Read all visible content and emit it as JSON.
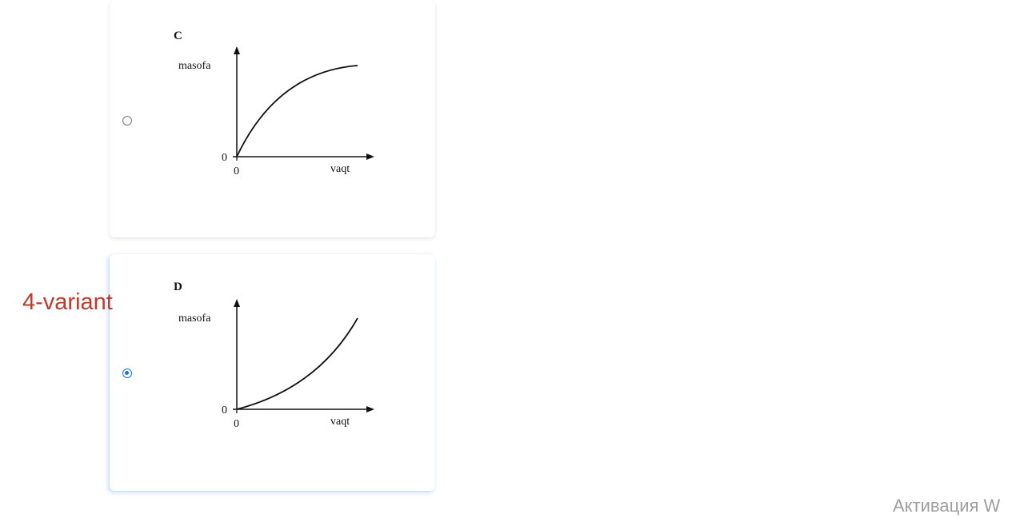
{
  "options": [
    {
      "letter": "C",
      "y_axis_label": "masofa",
      "x_axis_label": "vaqt",
      "origin_x_tick": "0",
      "origin_y_tick": "0",
      "curve": "concave-down",
      "selected": false
    },
    {
      "letter": "D",
      "y_axis_label": "masofa",
      "x_axis_label": "vaqt",
      "origin_x_tick": "0",
      "origin_y_tick": "0",
      "curve": "concave-up",
      "selected": true
    }
  ],
  "annotation": {
    "text": "4-variant",
    "color": "#c0392b"
  },
  "watermark": {
    "text": "Активация W"
  },
  "colors": {
    "radio_accent": "#1a73e8",
    "selected_glow": "#5096f0"
  }
}
